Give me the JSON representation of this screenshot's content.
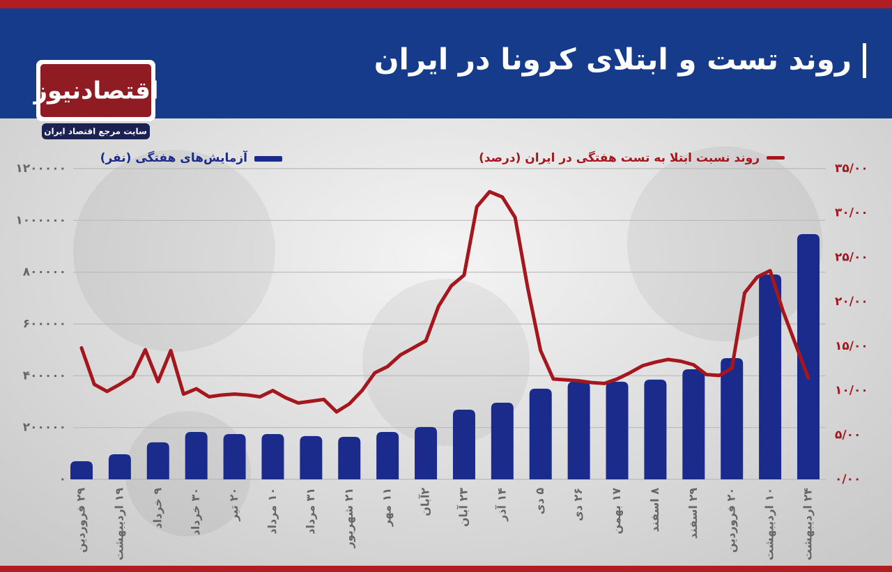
{
  "logo": {
    "name": "اقتصادنیوز",
    "tagline": "سایت مرجع اقتصاد ایران"
  },
  "chart_data": {
    "type": "bar",
    "title": "روند تست و ابتلای کرونا در ایران",
    "categories": [
      "۲۹ فروردین",
      null,
      null,
      "۱۹ اردیبهشت",
      null,
      null,
      "۹ خرداد",
      null,
      null,
      "۳۰ خرداد",
      null,
      null,
      "۲۰ تیر",
      null,
      null,
      "۱۰ مرداد",
      null,
      null,
      "۳۱ مرداد",
      null,
      null,
      "۲۱ شهریور",
      null,
      null,
      "۱۱ مهر",
      null,
      null,
      "۲آبان",
      null,
      null,
      "۲۳ آبان",
      null,
      null,
      "۱۴ آذر",
      null,
      null,
      "۵ دی",
      null,
      null,
      "۲۶ دی",
      null,
      null,
      "۱۷ بهمن",
      null,
      null,
      "۸ اسفند",
      null,
      null,
      "۲۹ اسفند",
      null,
      null,
      "۲۰ فروردین",
      null,
      null,
      "۱۰ اردیبهشت",
      null,
      null,
      "۲۴ اردیبهشت"
    ],
    "series": [
      {
        "name": "آزمایش‌های هفتگی (نفر)",
        "color": "#1b2b8c",
        "axis": "y",
        "values": [
          70000,
          null,
          null,
          97000,
          null,
          null,
          143000,
          null,
          null,
          183000,
          null,
          null,
          175000,
          null,
          null,
          175000,
          null,
          null,
          167000,
          null,
          null,
          164000,
          null,
          null,
          183000,
          null,
          null,
          202000,
          null,
          null,
          269000,
          null,
          null,
          296000,
          null,
          null,
          350000,
          null,
          null,
          377000,
          null,
          null,
          377000,
          null,
          null,
          385000,
          null,
          null,
          425000,
          null,
          null,
          468000,
          null,
          null,
          791000,
          null,
          null,
          947000
        ]
      },
      {
        "name": "روند نسبت ابتلا به تست هفتگی در ایران (درصد)",
        "color": "#a5161d",
        "axis": "y2",
        "type": "line",
        "values": [
          14.8,
          10.7,
          9.9,
          10.7,
          11.6,
          14.6,
          11.0,
          14.5,
          9.6,
          10.2,
          9.3,
          9.5,
          9.6,
          9.5,
          9.3,
          10.0,
          9.2,
          8.6,
          8.8,
          9.0,
          7.6,
          8.5,
          10.0,
          12.0,
          12.7,
          14.0,
          14.8,
          15.6,
          19.5,
          21.8,
          23.0,
          30.7,
          32.4,
          31.8,
          29.5,
          21.5,
          14.5,
          11.3,
          11.2,
          11.1,
          10.9,
          10.8,
          11.3,
          12.0,
          12.8,
          13.2,
          13.5,
          13.3,
          12.9,
          11.8,
          11.7,
          12.5,
          21.0,
          22.8,
          23.5,
          19.0,
          15.2,
          11.4
        ]
      }
    ],
    "ylim": [
      0,
      1200000
    ],
    "yticks": [
      {
        "value": 0,
        "label": "۰"
      },
      {
        "value": 200000,
        "label": "۲۰۰۰۰۰"
      },
      {
        "value": 400000,
        "label": "۴۰۰۰۰۰"
      },
      {
        "value": 600000,
        "label": "۶۰۰۰۰۰"
      },
      {
        "value": 800000,
        "label": "۸۰۰۰۰۰"
      },
      {
        "value": 1000000,
        "label": "۱۰۰۰۰۰۰"
      },
      {
        "value": 1200000,
        "label": "۱۲۰۰۰۰۰"
      }
    ],
    "y2lim": [
      0,
      35
    ],
    "y2ticks": [
      {
        "value": 0,
        "label": "۰/۰۰"
      },
      {
        "value": 5,
        "label": "۵/۰۰"
      },
      {
        "value": 10,
        "label": "۱۰/۰۰"
      },
      {
        "value": 15,
        "label": "۱۵/۰۰"
      },
      {
        "value": 20,
        "label": "۲۰/۰۰"
      },
      {
        "value": 25,
        "label": "۲۵/۰۰"
      },
      {
        "value": 30,
        "label": "۳۰/۰۰"
      },
      {
        "value": 35,
        "label": "۳۵/۰۰"
      }
    ],
    "grid": true
  }
}
